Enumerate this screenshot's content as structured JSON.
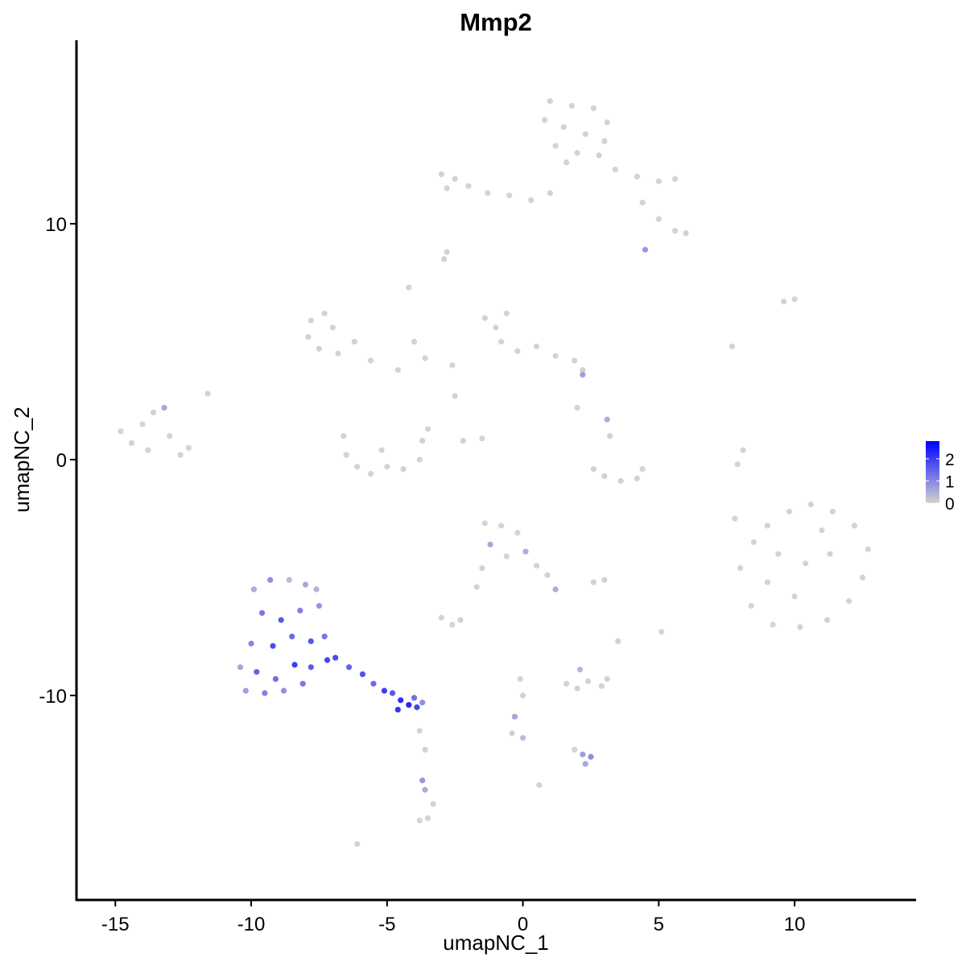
{
  "chart_data": {
    "type": "scatter",
    "title": "Mmp2",
    "x_label": "umapNC_1",
    "y_label": "umapNC_2",
    "xlim": [
      -16.43,
      14.47
    ],
    "ylim": [
      -18.67,
      17.78
    ],
    "xticks": [
      -15,
      -10,
      -5,
      0,
      5,
      10
    ],
    "yticks": [
      -10,
      0,
      10
    ],
    "x": [
      1.0,
      1.8,
      2.6,
      3.1,
      0.8,
      1.5,
      2.3,
      3.0,
      1.2,
      2.0,
      2.8,
      1.6,
      -3.0,
      -2.5,
      -2.0,
      -1.3,
      -0.5,
      0.3,
      1.0,
      -2.8,
      3.4,
      4.2,
      5.0,
      5.6,
      4.4,
      5.0,
      5.6,
      6.0,
      4.5,
      -2.8,
      -2.9,
      -7.8,
      -7.3,
      -7.0,
      -7.9,
      -7.5,
      -6.8,
      -6.2,
      -5.6,
      -4.6,
      -4.2,
      -4.0,
      -3.6,
      -2.6,
      -1.4,
      -1.0,
      -0.6,
      -0.8,
      -0.2,
      0.5,
      1.2,
      1.9,
      2.2,
      2.2,
      -2.5,
      -6.6,
      -6.5,
      -6.1,
      -5.6,
      -5.0,
      -4.4,
      -3.8,
      -3.7,
      -3.5,
      -5.2,
      -2.2,
      -1.5,
      -14.8,
      -14.4,
      -14.0,
      -13.6,
      -13.2,
      -13.8,
      -13.0,
      -12.6,
      -12.3,
      -11.6,
      2.0,
      3.1,
      3.2,
      2.6,
      3.0,
      3.6,
      4.2,
      4.4,
      8.0,
      8.5,
      9.0,
      9.8,
      10.6,
      11.4,
      12.2,
      12.7,
      12.5,
      12.0,
      11.2,
      10.2,
      9.2,
      8.4,
      9.4,
      10.4,
      11.3,
      10.0,
      11.0,
      9.0,
      -1.4,
      -0.8,
      -0.2,
      -1.2,
      -0.6,
      0.1,
      0.5,
      0.9,
      1.2,
      -1.5,
      -3.0,
      -2.6,
      -2.3,
      -1.7,
      3.0,
      2.6,
      5.1,
      3.5,
      1.6,
      2.0,
      2.4,
      2.9,
      3.1,
      2.1,
      -0.1,
      0.0,
      -9.9,
      -9.3,
      -8.6,
      -8.0,
      -7.6,
      -9.6,
      -8.9,
      -8.2,
      -7.5,
      -10.0,
      -9.2,
      -8.5,
      -7.8,
      -7.3,
      -10.4,
      -9.8,
      -9.1,
      -8.4,
      -7.8,
      -7.2,
      -10.2,
      -9.5,
      -8.8,
      -8.1,
      -6.9,
      -6.4,
      -5.9,
      -5.5,
      -5.1,
      -4.8,
      -4.5,
      -4.2,
      -3.9,
      -4.0,
      -3.7,
      -4.6,
      -3.8,
      -3.6,
      -3.7,
      -3.6,
      -3.3,
      -3.5,
      -3.8,
      -6.1,
      2.2,
      2.5,
      2.3,
      1.9,
      -0.3,
      -0.4,
      0.0,
      0.6,
      7.7,
      9.6,
      10.0,
      8.1,
      7.9,
      7.8
    ],
    "series": [
      {
        "values": [
          15.2,
          15.0,
          14.9,
          14.3,
          14.4,
          14.1,
          13.8,
          13.5,
          13.3,
          13.0,
          12.9,
          12.6,
          12.1,
          11.9,
          11.6,
          11.3,
          11.2,
          11.0,
          11.3,
          11.5,
          12.3,
          12.0,
          11.8,
          11.9,
          10.9,
          10.2,
          9.7,
          9.6,
          8.9,
          8.8,
          8.5,
          5.9,
          6.2,
          5.6,
          5.2,
          4.7,
          4.5,
          5.0,
          4.2,
          3.8,
          7.3,
          5.0,
          4.3,
          4.0,
          6.0,
          5.6,
          6.2,
          5.0,
          4.6,
          4.8,
          4.4,
          4.2,
          3.8,
          3.6,
          2.7,
          1.0,
          0.2,
          -0.3,
          -0.6,
          -0.3,
          -0.4,
          0.0,
          0.8,
          1.3,
          0.4,
          0.8,
          0.9,
          1.2,
          0.7,
          1.5,
          2.0,
          2.2,
          0.4,
          1.0,
          0.2,
          0.5,
          2.8,
          2.2,
          1.7,
          1.0,
          -0.4,
          -0.7,
          -0.9,
          -0.8,
          -0.4,
          -4.6,
          -3.5,
          -2.8,
          -2.2,
          -1.9,
          -2.2,
          -2.8,
          -3.8,
          -5.0,
          -6.0,
          -6.8,
          -7.1,
          -7.0,
          -6.2,
          -4.0,
          -4.4,
          -4.0,
          -5.8,
          -3.0,
          -5.2,
          -2.7,
          -2.8,
          -3.1,
          -3.6,
          -4.1,
          -3.9,
          -4.5,
          -4.9,
          -5.5,
          -4.6,
          -6.7,
          -7.0,
          -6.8,
          -5.4,
          -5.1,
          -5.2,
          -7.3,
          -7.7,
          -9.5,
          -9.7,
          -9.4,
          -9.6,
          -9.3,
          -8.9,
          -9.3,
          -10.0,
          -5.5,
          -5.1,
          -5.1,
          -5.3,
          -5.5,
          -6.5,
          -6.8,
          -6.4,
          -6.2,
          -7.8,
          -7.9,
          -7.5,
          -7.7,
          -7.5,
          -8.8,
          -9.0,
          -9.3,
          -8.7,
          -8.8,
          -8.5,
          -9.8,
          -9.9,
          -9.8,
          -9.5,
          -8.4,
          -8.8,
          -9.1,
          -9.5,
          -9.8,
          -9.9,
          -10.2,
          -10.4,
          -10.5,
          -10.1,
          -10.3,
          -10.6,
          -11.5,
          -12.3,
          -13.6,
          -14.0,
          -14.6,
          -15.2,
          -15.3,
          -16.3,
          -12.5,
          -12.6,
          -12.9,
          -12.3,
          -10.9,
          -11.6,
          -11.8,
          -13.8,
          4.8,
          6.7,
          6.8,
          0.4,
          -0.2,
          -2.5
        ],
        "expression": [
          0,
          0,
          0,
          0,
          0,
          0,
          0,
          0,
          0,
          0,
          0,
          0,
          0,
          0,
          0,
          0,
          0,
          0,
          0,
          0,
          0,
          0,
          0,
          0,
          0,
          0,
          0,
          0,
          0.8,
          0,
          0,
          0,
          0,
          0,
          0,
          0,
          0,
          0,
          0,
          0,
          0,
          0,
          0,
          0,
          0,
          0,
          0,
          0,
          0,
          0,
          0,
          0,
          0,
          0.7,
          0,
          0,
          0,
          0,
          0,
          0,
          0,
          0,
          0,
          0,
          0,
          0,
          0,
          0,
          0,
          0,
          0,
          0.6,
          0,
          0,
          0,
          0,
          0,
          0,
          0.5,
          0,
          0,
          0,
          0,
          0,
          0,
          0,
          0,
          0,
          0,
          0,
          0,
          0,
          0,
          0,
          0,
          0,
          0,
          0,
          0,
          0,
          0,
          0,
          0,
          0,
          0,
          0,
          0,
          0,
          0.6,
          0,
          0.5,
          0,
          0,
          0.5,
          0,
          0,
          0,
          0,
          0,
          0,
          0,
          0,
          0,
          0,
          0,
          0,
          0,
          0,
          0.4,
          0,
          0,
          0.5,
          0.9,
          0.3,
          0.6,
          0.4,
          1.2,
          1.6,
          1.1,
          0.8,
          1.0,
          1.8,
          1.4,
          1.7,
          1.2,
          0.6,
          1.5,
          1.3,
          2.0,
          1.6,
          1.9,
          0.7,
          1.1,
          0.9,
          1.2,
          1.8,
          1.5,
          1.7,
          1.4,
          2.0,
          1.6,
          2.2,
          2.3,
          1.9,
          1.3,
          0.9,
          2.1,
          0,
          0,
          0.8,
          0.5,
          0,
          0,
          0,
          0,
          0.7,
          0.9,
          0.6,
          0,
          0.6,
          0,
          0.3,
          0,
          0,
          0,
          0,
          0,
          0,
          0
        ]
      }
    ],
    "colorbar": {
      "lim": [
        0,
        2.8
      ],
      "ticks": [
        0,
        1,
        2
      ],
      "low_color": "#d3d3d3",
      "high_color": "#0000ff"
    }
  }
}
